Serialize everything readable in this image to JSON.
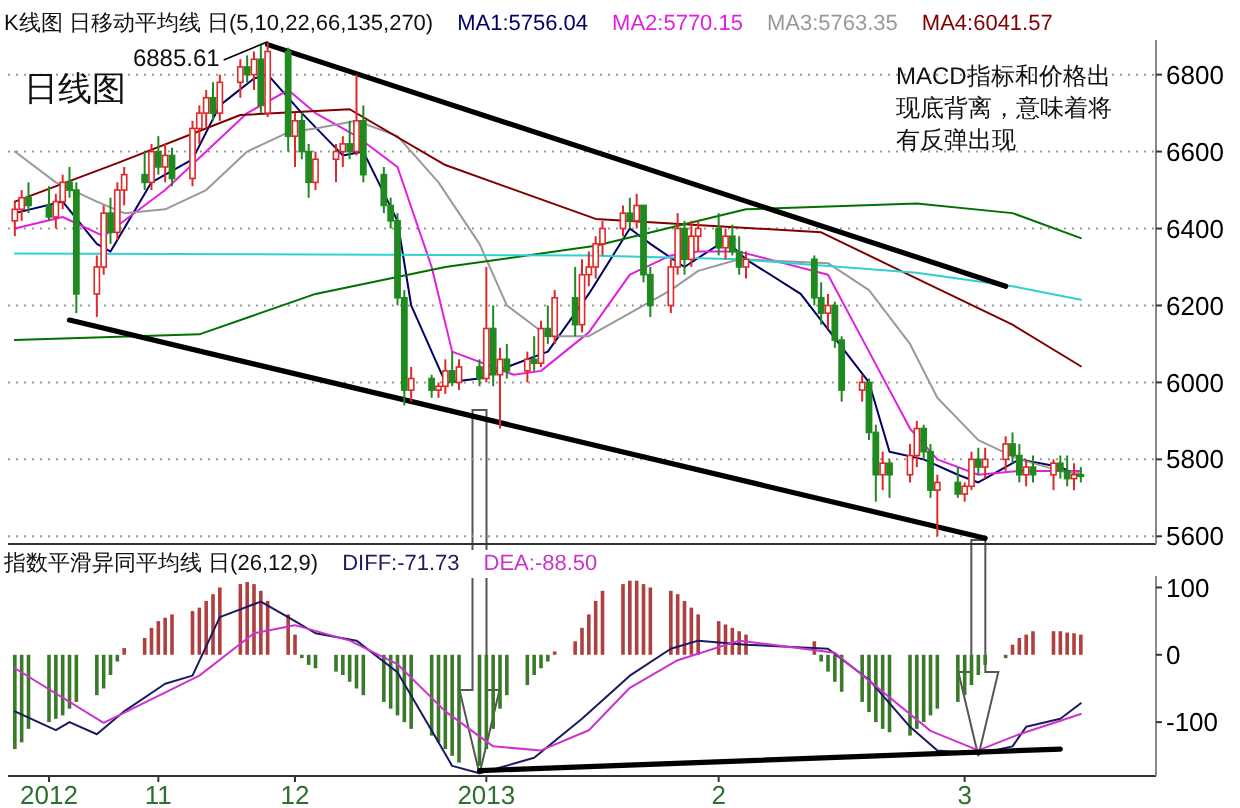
{
  "chart_data": [
    {
      "type": "candlestick",
      "title": "日线图",
      "subtitle": "K线图 日移动平均线 日(5,10,22,66,135,270)",
      "legend": "top",
      "grid": "y",
      "tick_labels": "y",
      "x": [
        "2012-10-24",
        "2012-10-25",
        "2012-10-26",
        "2012-10-29",
        "2012-10-30",
        "2012-10-31",
        "2012-11-01",
        "2012-11-02",
        "2012-11-05",
        "2012-11-06",
        "2012-11-07",
        "2012-11-08",
        "2012-11-09",
        "2012-11-12",
        "2012-11-13",
        "2012-11-14",
        "2012-11-15",
        "2012-11-16",
        "2012-11-19",
        "2012-11-20",
        "2012-11-21",
        "2012-11-22",
        "2012-11-23",
        "2012-11-26",
        "2012-11-27",
        "2012-11-28",
        "2012-11-29",
        "2012-11-30",
        "2012-12-03",
        "2012-12-04",
        "2012-12-05",
        "2012-12-06",
        "2012-12-07",
        "2012-12-10",
        "2012-12-11",
        "2012-12-12",
        "2012-12-13",
        "2012-12-14",
        "2012-12-17",
        "2012-12-18",
        "2012-12-19",
        "2012-12-20",
        "2012-12-21",
        "2012-12-24",
        "2012-12-25",
        "2012-12-26",
        "2012-12-27",
        "2012-12-28",
        "2012-12-31",
        "2013-01-01",
        "2013-01-02",
        "2013-01-03",
        "2013-01-04",
        "2013-01-07",
        "2013-01-08",
        "2013-01-09",
        "2013-01-10",
        "2013-01-11",
        "2013-01-14",
        "2013-01-15",
        "2013-01-16",
        "2013-01-17",
        "2013-01-18",
        "2013-01-21",
        "2013-01-22",
        "2013-01-23",
        "2013-01-24",
        "2013-01-25",
        "2013-01-28",
        "2013-01-29",
        "2013-01-30",
        "2013-01-31",
        "2013-02-01",
        "2013-02-04",
        "2013-02-05",
        "2013-02-06",
        "2013-02-07",
        "2013-02-08",
        "2013-02-18",
        "2013-02-19",
        "2013-02-20",
        "2013-02-21",
        "2013-02-22",
        "2013-02-25",
        "2013-02-26",
        "2013-02-27",
        "2013-02-28",
        "2013-03-01",
        "2013-03-04",
        "2013-03-05",
        "2013-03-06",
        "2013-03-07",
        "2013-03-08",
        "2013-03-11",
        "2013-03-12",
        "2013-03-13",
        "2013-03-14",
        "2013-03-15",
        "2013-03-18",
        "2013-03-19",
        "2013-03-20",
        "2013-03-21",
        "2013-03-22",
        "2013-03-25",
        "2013-03-26",
        "2013-03-27",
        "2013-03-28",
        "2013-03-29"
      ],
      "xlim": [
        "2012-10-23",
        "2013-04-09"
      ],
      "ylim": [
        5580,
        6890
      ],
      "yticks": [
        5600,
        5800,
        6000,
        6200,
        6400,
        6600,
        6800
      ],
      "ohlc": [
        [
          6420,
          6470,
          6380,
          6450
        ],
        [
          6450,
          6500,
          6420,
          6480
        ],
        [
          6480,
          6520,
          6440,
          6460
        ],
        [
          6460,
          6510,
          6420,
          6430
        ],
        [
          6430,
          6490,
          6400,
          6470
        ],
        [
          6470,
          6540,
          6450,
          6520
        ],
        [
          6520,
          6560,
          6480,
          6500
        ],
        [
          6500,
          6520,
          6180,
          6230
        ],
        [
          6230,
          6330,
          6170,
          6300
        ],
        [
          6300,
          6460,
          6280,
          6440
        ],
        [
          6440,
          6480,
          6360,
          6390
        ],
        [
          6390,
          6520,
          6370,
          6500
        ],
        [
          6500,
          6560,
          6460,
          6540
        ],
        [
          6540,
          6600,
          6500,
          6520
        ],
        [
          6520,
          6620,
          6500,
          6600
        ],
        [
          6600,
          6640,
          6540,
          6560
        ],
        [
          6560,
          6620,
          6520,
          6590
        ],
        [
          6590,
          6610,
          6510,
          6530
        ],
        [
          6530,
          6680,
          6510,
          6660
        ],
        [
          6660,
          6720,
          6620,
          6700
        ],
        [
          6700,
          6760,
          6660,
          6740
        ],
        [
          6740,
          6780,
          6680,
          6700
        ],
        [
          6700,
          6800,
          6680,
          6780
        ],
        [
          6780,
          6840,
          6740,
          6820
        ],
        [
          6820,
          6850,
          6780,
          6800
        ],
        [
          6800,
          6860,
          6760,
          6840
        ],
        [
          6840,
          6880,
          6700,
          6720
        ],
        [
          6700,
          6885.61,
          6690,
          6860
        ],
        [
          6860,
          6870,
          6600,
          6640
        ],
        [
          6640,
          6700,
          6560,
          6680
        ],
        [
          6680,
          6700,
          6580,
          6600
        ],
        [
          6600,
          6620,
          6480,
          6520
        ],
        [
          6520,
          6600,
          6500,
          6580
        ],
        [
          6580,
          6620,
          6520,
          6600
        ],
        [
          6600,
          6640,
          6560,
          6620
        ],
        [
          6620,
          6680,
          6580,
          6600
        ],
        [
          6600,
          6800,
          6590,
          6680
        ],
        [
          6680,
          6720,
          6520,
          6540
        ],
        [
          6540,
          6560,
          6440,
          6460
        ],
        [
          6460,
          6480,
          6400,
          6420
        ],
        [
          6420,
          6440,
          6200,
          6220
        ],
        [
          6220,
          6240,
          5940,
          5980
        ],
        [
          5980,
          6040,
          5950,
          6010
        ],
        [
          6010,
          6020,
          5960,
          5980
        ],
        [
          5980,
          6000,
          5960,
          5990
        ],
        [
          5990,
          6060,
          5970,
          6030
        ],
        [
          6030,
          6080,
          5990,
          6000
        ],
        [
          6000,
          6060,
          5980,
          6040
        ],
        [
          6040,
          6060,
          5990,
          6010
        ],
        [
          6010,
          6300,
          6000,
          6140
        ],
        [
          6140,
          6200,
          5990,
          6020
        ],
        [
          6020,
          6090,
          5880,
          6060
        ],
        [
          6060,
          6100,
          6010,
          6030
        ],
        [
          6030,
          6080,
          6000,
          6060
        ],
        [
          6060,
          6120,
          6030,
          6050
        ],
        [
          6050,
          6160,
          6040,
          6140
        ],
        [
          6140,
          6200,
          6100,
          6120
        ],
        [
          6120,
          6240,
          6100,
          6220
        ],
        [
          6220,
          6300,
          6120,
          6150
        ],
        [
          6150,
          6320,
          6130,
          6280
        ],
        [
          6280,
          6340,
          6250,
          6300
        ],
        [
          6300,
          6380,
          6270,
          6360
        ],
        [
          6360,
          6420,
          6330,
          6400
        ],
        [
          6400,
          6460,
          6380,
          6440
        ],
        [
          6440,
          6480,
          6400,
          6420
        ],
        [
          6420,
          6490,
          6400,
          6460
        ],
        [
          6460,
          6460,
          6260,
          6280
        ],
        [
          6280,
          6300,
          6170,
          6200
        ],
        [
          6200,
          6320,
          6180,
          6300
        ],
        [
          6300,
          6440,
          6280,
          6400
        ],
        [
          6400,
          6420,
          6280,
          6320
        ],
        [
          6320,
          6420,
          6300,
          6380
        ],
        [
          6380,
          6420,
          6340,
          6400
        ],
        [
          6400,
          6440,
          6330,
          6350
        ],
        [
          6350,
          6400,
          6320,
          6380
        ],
        [
          6380,
          6410,
          6330,
          6340
        ],
        [
          6340,
          6380,
          6280,
          6300
        ],
        [
          6300,
          6340,
          6270,
          6320
        ],
        [
          6320,
          6330,
          6200,
          6220
        ],
        [
          6220,
          6260,
          6150,
          6180
        ],
        [
          6180,
          6230,
          6140,
          6200
        ],
        [
          6200,
          6210,
          6090,
          6110
        ],
        [
          6110,
          6120,
          5950,
          5980
        ],
        [
          5980,
          6020,
          5950,
          6000
        ],
        [
          6000,
          6010,
          5850,
          5870
        ],
        [
          5870,
          5890,
          5690,
          5760
        ],
        [
          5760,
          5820,
          5720,
          5790
        ],
        [
          5790,
          5800,
          5700,
          5760
        ],
        [
          5760,
          5840,
          5740,
          5810
        ],
        [
          5810,
          5900,
          5780,
          5880
        ],
        [
          5880,
          5890,
          5800,
          5820
        ],
        [
          5820,
          5840,
          5700,
          5720
        ],
        [
          5720,
          5760,
          5600,
          5740
        ],
        [
          5740,
          5780,
          5700,
          5710
        ],
        [
          5710,
          5740,
          5690,
          5730
        ],
        [
          5730,
          5820,
          5720,
          5800
        ],
        [
          5800,
          5830,
          5760,
          5780
        ],
        [
          5780,
          5830,
          5750,
          5800
        ],
        [
          5800,
          5860,
          5770,
          5840
        ],
        [
          5840,
          5870,
          5790,
          5810
        ],
        [
          5810,
          5840,
          5740,
          5760
        ],
        [
          5760,
          5800,
          5730,
          5780
        ],
        [
          5780,
          5810,
          5740,
          5760
        ],
        [
          5760,
          5800,
          5720,
          5790
        ],
        [
          5790,
          5810,
          5750,
          5770
        ],
        [
          5770,
          5810,
          5730,
          5750
        ],
        [
          5750,
          5790,
          5720,
          5760
        ],
        [
          5760,
          5780,
          5740,
          5756
        ]
      ],
      "series": [
        {
          "type": "line",
          "name": "MA1:5756.04",
          "color": "#000066",
          "x": [
            "2012-10-24",
            "2012-10-31",
            "2012-11-05",
            "2012-11-07",
            "2012-11-13",
            "2012-11-19",
            "2012-11-23",
            "2012-11-28",
            "2012-11-30",
            "2012-12-05",
            "2012-12-11",
            "2012-12-14",
            "2012-12-19",
            "2012-12-21",
            "2012-12-26",
            "2012-12-31",
            "2013-01-04",
            "2013-01-10",
            "2013-01-16",
            "2013-01-22",
            "2013-01-25",
            "2013-01-30",
            "2013-02-05",
            "2013-02-08",
            "2013-02-16",
            "2013-02-26",
            "2013-03-01",
            "2013-03-06",
            "2013-03-11",
            "2013-03-14",
            "2013-03-20",
            "2013-03-26",
            "2013-03-29"
          ],
          "values": [
            6440,
            6470,
            6360,
            6340,
            6520,
            6580,
            6720,
            6790,
            6800,
            6700,
            6590,
            6600,
            6420,
            6200,
            6000,
            6010,
            6040,
            6080,
            6230,
            6400,
            6360,
            6300,
            6370,
            6320,
            6230,
            6000,
            5820,
            5800,
            5760,
            5740,
            5800,
            5780,
            5756
          ]
        },
        {
          "type": "line",
          "name": "MA2:5770.15",
          "color": "#e020e0",
          "x": [
            "2012-10-24",
            "2012-10-31",
            "2012-11-06",
            "2012-11-09",
            "2012-11-15",
            "2012-11-21",
            "2012-11-27",
            "2012-12-03",
            "2012-12-07",
            "2012-12-13",
            "2012-12-19",
            "2012-12-24",
            "2012-12-27",
            "2013-01-05",
            "2013-01-09",
            "2013-01-16",
            "2013-01-22",
            "2013-01-28",
            "2013-02-01",
            "2013-02-07",
            "2013-02-20",
            "2013-02-26",
            "2013-03-04",
            "2013-03-08",
            "2013-03-14",
            "2013-03-20",
            "2013-03-26",
            "2013-03-29"
          ],
          "values": [
            6400,
            6430,
            6380,
            6420,
            6500,
            6600,
            6700,
            6760,
            6700,
            6640,
            6560,
            6300,
            6080,
            6020,
            6030,
            6130,
            6280,
            6330,
            6340,
            6340,
            6280,
            6080,
            5880,
            5800,
            5760,
            5770,
            5770,
            5770
          ]
        },
        {
          "type": "line",
          "name": "MA3:5763.35",
          "color": "#999999",
          "x": [
            "2012-10-24",
            "2012-10-30",
            "2012-11-05",
            "2012-11-09",
            "2012-11-15",
            "2012-11-21",
            "2012-11-27",
            "2012-12-03",
            "2012-12-07",
            "2012-12-13",
            "2012-12-19",
            "2012-12-25",
            "2012-12-31",
            "2013-01-04",
            "2013-01-10",
            "2013-01-16",
            "2013-01-22",
            "2013-01-28",
            "2013-02-01",
            "2013-02-07",
            "2013-02-20",
            "2013-02-26",
            "2013-03-04",
            "2013-03-08",
            "2013-03-14",
            "2013-03-20",
            "2013-03-26",
            "2013-03-29"
          ],
          "values": [
            6600,
            6520,
            6470,
            6440,
            6450,
            6500,
            6600,
            6650,
            6660,
            6680,
            6640,
            6520,
            6360,
            6200,
            6120,
            6120,
            6180,
            6240,
            6290,
            6320,
            6310,
            6240,
            6100,
            5960,
            5850,
            5800,
            5770,
            5763
          ]
        },
        {
          "type": "line",
          "name": "MA4:6041.57",
          "color": "#800000",
          "x": [
            "2012-10-24",
            "2012-11-08",
            "2012-11-26",
            "2012-12-12",
            "2012-12-26",
            "2013-01-17",
            "2013-02-19",
            "2013-03-05",
            "2013-03-19",
            "2013-03-29"
          ],
          "values": [
            6470,
            6570,
            6695,
            6710,
            6565,
            6425,
            6390,
            6270,
            6150,
            6042
          ]
        },
        {
          "type": "line",
          "color": "#007000",
          "x": [
            "2012-10-24",
            "2012-11-20",
            "2012-12-07",
            "2012-12-26",
            "2013-01-17",
            "2013-02-08",
            "2013-03-05",
            "2013-03-19",
            "2013-03-29"
          ],
          "values": [
            6110,
            6125,
            6230,
            6300,
            6355,
            6450,
            6465,
            6440,
            6375
          ]
        },
        {
          "type": "line",
          "color": "#30d0d0",
          "x": [
            "2012-10-24",
            "2013-01-16",
            "2013-02-07",
            "2013-03-05",
            "2013-03-19",
            "2013-03-29"
          ],
          "values": [
            6335,
            6330,
            6320,
            6285,
            6250,
            6215
          ]
        },
        {
          "type": "line",
          "color": "#000000",
          "x": [
            "2012-11-30",
            "2013-03-18"
          ],
          "values": [
            6878,
            6250
          ]
        },
        {
          "type": "line",
          "color": "#000000",
          "x": [
            "2012-11-01",
            "2013-03-15"
          ],
          "values": [
            6162,
            5595
          ]
        }
      ],
      "annotations": [
        {
          "text": "6885.61",
          "x": "2012-11-30",
          "y": 6885.61
        },
        "MACD指标和价格出现底背离，意味着将有反弹出现"
      ]
    },
    {
      "type": "bar",
      "subtitle": "指数平滑异同平均线 日(26,12,9)",
      "legend": "top",
      "x": [
        "2012-10-24",
        "2012-10-25",
        "2012-10-26",
        "2012-10-29",
        "2012-10-30",
        "2012-10-31",
        "2012-11-01",
        "2012-11-02",
        "2012-11-05",
        "2012-11-06",
        "2012-11-07",
        "2012-11-08",
        "2012-11-09",
        "2012-11-12",
        "2012-11-13",
        "2012-11-14",
        "2012-11-15",
        "2012-11-16",
        "2012-11-19",
        "2012-11-20",
        "2012-11-21",
        "2012-11-22",
        "2012-11-23",
        "2012-11-26",
        "2012-11-27",
        "2012-11-28",
        "2012-11-29",
        "2012-11-30",
        "2012-12-03",
        "2012-12-04",
        "2012-12-05",
        "2012-12-06",
        "2012-12-07",
        "2012-12-10",
        "2012-12-11",
        "2012-12-12",
        "2012-12-13",
        "2012-12-14",
        "2012-12-17",
        "2012-12-18",
        "2012-12-19",
        "2012-12-20",
        "2012-12-21",
        "2012-12-24",
        "2012-12-25",
        "2012-12-26",
        "2012-12-27",
        "2012-12-28",
        "2012-12-31",
        "2013-01-01",
        "2013-01-02",
        "2013-01-03",
        "2013-01-04",
        "2013-01-07",
        "2013-01-08",
        "2013-01-09",
        "2013-01-10",
        "2013-01-11",
        "2013-01-14",
        "2013-01-15",
        "2013-01-16",
        "2013-01-17",
        "2013-01-18",
        "2013-01-21",
        "2013-01-22",
        "2013-01-23",
        "2013-01-24",
        "2013-01-25",
        "2013-01-28",
        "2013-01-29",
        "2013-01-30",
        "2013-01-31",
        "2013-02-01",
        "2013-02-04",
        "2013-02-05",
        "2013-02-06",
        "2013-02-07",
        "2013-02-08",
        "2013-02-18",
        "2013-02-19",
        "2013-02-20",
        "2013-02-21",
        "2013-02-22",
        "2013-02-25",
        "2013-02-26",
        "2013-02-27",
        "2013-02-28",
        "2013-03-01",
        "2013-03-04",
        "2013-03-05",
        "2013-03-06",
        "2013-03-07",
        "2013-03-08",
        "2013-03-11",
        "2013-03-12",
        "2013-03-13",
        "2013-03-14",
        "2013-03-15",
        "2013-03-18",
        "2013-03-19",
        "2013-03-20",
        "2013-03-21",
        "2013-03-22",
        "2013-03-25",
        "2013-03-26",
        "2013-03-27",
        "2013-03-28",
        "2013-03-29"
      ],
      "xlim": [
        "2012-10-23",
        "2013-04-09"
      ],
      "xticks": [
        {
          "value": "2012-10-29",
          "label": "2012"
        },
        {
          "value": "2012-11-14",
          "label": "11"
        },
        {
          "value": "2012-12-04",
          "label": "12"
        },
        {
          "value": "2013-01-01",
          "label": "2013"
        },
        {
          "value": "2013-02-04",
          "label": "2"
        },
        {
          "value": "2013-03-12",
          "label": "3"
        }
      ],
      "ylim": [
        -180,
        117
      ],
      "yticks": [
        -100,
        0,
        100
      ],
      "series": [
        {
          "type": "bar",
          "values": [
            -140,
            -130,
            -110,
            -100,
            -95,
            -90,
            -80,
            -70,
            -60,
            -50,
            -30,
            -10,
            10,
            25,
            40,
            50,
            55,
            60,
            65,
            70,
            80,
            90,
            100,
            105,
            108,
            105,
            95,
            80,
            60,
            30,
            -5,
            -15,
            -20,
            -25,
            -30,
            -40,
            -50,
            -60,
            -70,
            -80,
            -90,
            -100,
            -110,
            -120,
            -130,
            -140,
            -150,
            -160,
            -165,
            -140,
            -110,
            -80,
            -60,
            -45,
            -30,
            -20,
            -10,
            5,
            20,
            40,
            60,
            80,
            95,
            105,
            110,
            110,
            105,
            100,
            95,
            90,
            80,
            70,
            60,
            50,
            45,
            40,
            35,
            30,
            20,
            -10,
            -25,
            -40,
            -55,
            -70,
            -85,
            -100,
            -110,
            -115,
            -120,
            -110,
            -100,
            -90,
            -80,
            -70,
            -60,
            -45,
            -30,
            -15,
            -5,
            15,
            25,
            30,
            35,
            35,
            35,
            33,
            32,
            30
          ],
          "colors": [
            "#3a7a2a",
            "#3a7a2a",
            "#3a7a2a",
            "#3a7a2a",
            "#3a7a2a",
            "#3a7a2a",
            "#3a7a2a",
            "#3a7a2a",
            "#3a7a2a",
            "#3a7a2a",
            "#3a7a2a",
            "#3a7a2a",
            "#b04040",
            "#b04040",
            "#b04040",
            "#b04040",
            "#b04040",
            "#b04040",
            "#b04040",
            "#b04040",
            "#b04040",
            "#b04040",
            "#b04040",
            "#b04040",
            "#b04040",
            "#b04040",
            "#b04040",
            "#b04040",
            "#b04040",
            "#b04040",
            "#3a7a2a",
            "#3a7a2a",
            "#3a7a2a",
            "#3a7a2a",
            "#3a7a2a",
            "#3a7a2a",
            "#3a7a2a",
            "#3a7a2a",
            "#3a7a2a",
            "#3a7a2a",
            "#3a7a2a",
            "#3a7a2a",
            "#3a7a2a",
            "#3a7a2a",
            "#3a7a2a",
            "#3a7a2a",
            "#3a7a2a",
            "#3a7a2a",
            "#3a7a2a",
            "#3a7a2a",
            "#3a7a2a",
            "#3a7a2a",
            "#3a7a2a",
            "#3a7a2a",
            "#3a7a2a",
            "#3a7a2a",
            "#3a7a2a",
            "#b04040",
            "#b04040",
            "#b04040",
            "#b04040",
            "#b04040",
            "#b04040",
            "#b04040",
            "#b04040",
            "#b04040",
            "#b04040",
            "#b04040",
            "#b04040",
            "#b04040",
            "#b04040",
            "#b04040",
            "#b04040",
            "#b04040",
            "#b04040",
            "#b04040",
            "#b04040",
            "#b04040",
            "#b04040",
            "#3a7a2a",
            "#3a7a2a",
            "#3a7a2a",
            "#3a7a2a",
            "#3a7a2a",
            "#3a7a2a",
            "#3a7a2a",
            "#3a7a2a",
            "#3a7a2a",
            "#3a7a2a",
            "#3a7a2a",
            "#3a7a2a",
            "#3a7a2a",
            "#3a7a2a",
            "#3a7a2a",
            "#3a7a2a",
            "#3a7a2a",
            "#3a7a2a",
            "#3a7a2a",
            "#3a7a2a",
            "#b04040",
            "#b04040",
            "#b04040",
            "#b04040",
            "#b04040",
            "#b04040",
            "#b04040",
            "#b04040",
            "#b04040"
          ]
        },
        {
          "type": "line",
          "name": "DIFF:-71.73",
          "color": "#1a1a60",
          "x": [
            "2012-10-24",
            "2012-10-30",
            "2012-11-01",
            "2012-11-05",
            "2012-11-09",
            "2012-11-15",
            "2012-11-19",
            "2012-11-23",
            "2012-11-29",
            "2012-12-04",
            "2012-12-07",
            "2012-12-13",
            "2012-12-19",
            "2012-12-25",
            "2012-12-27",
            "2012-12-31",
            "2013-01-08",
            "2013-01-15",
            "2013-01-22",
            "2013-01-28",
            "2013-02-01",
            "2013-02-08",
            "2013-02-20",
            "2013-02-26",
            "2013-03-04",
            "2013-03-08",
            "2013-03-14",
            "2013-03-19",
            "2013-03-21",
            "2013-03-26",
            "2013-03-29"
          ],
          "values": [
            -84,
            -112,
            -100,
            -118,
            -84,
            -43,
            -31,
            56,
            79,
            50,
            32,
            21,
            -26,
            -130,
            -165,
            -176,
            -153,
            -95,
            -31,
            9,
            21,
            15,
            9,
            -37,
            -107,
            -142,
            -147,
            -136,
            -107,
            -95,
            -72
          ]
        },
        {
          "type": "line",
          "name": "DEA:-88.50",
          "color": "#cc33cc",
          "x": [
            "2012-10-24",
            "2012-11-06",
            "2012-11-20",
            "2012-11-28",
            "2012-12-04",
            "2012-12-12",
            "2012-12-19",
            "2012-12-26",
            "2013-01-02",
            "2013-01-09",
            "2013-01-16",
            "2013-01-22",
            "2013-01-29",
            "2013-02-07",
            "2013-02-21",
            "2013-02-28",
            "2013-03-07",
            "2013-03-14",
            "2013-03-20",
            "2013-03-29"
          ],
          "values": [
            -20,
            -101,
            -31,
            32,
            44,
            21,
            -14,
            -84,
            -136,
            -142,
            -112,
            -49,
            -8,
            21,
            3,
            -55,
            -113,
            -142,
            -118,
            -88
          ]
        },
        {
          "type": "line",
          "color": "#000000",
          "x": [
            "2012-12-31",
            "2013-03-26"
          ],
          "values": [
            -172,
            -140
          ]
        }
      ]
    }
  ]
}
